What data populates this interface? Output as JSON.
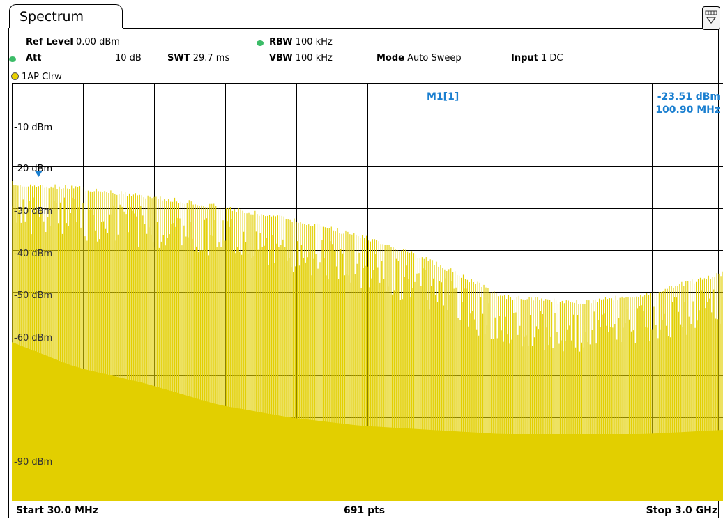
{
  "tab": {
    "title": "Spectrum"
  },
  "header": {
    "ref_level_label": "Ref Level",
    "ref_level_value": "0.00 dBm",
    "att_label": "Att",
    "att_value": "10 dB",
    "swt_label": "SWT",
    "swt_value": "29.7 ms",
    "rbw_label": "RBW",
    "rbw_value": "100 kHz",
    "vbw_label": "VBW",
    "vbw_value": "100 kHz",
    "mode_label": "Mode",
    "mode_value": "Auto Sweep",
    "input_label": "Input",
    "input_value": "1 DC"
  },
  "trace": {
    "label": "1AP Clrw",
    "color": "#e2cf00"
  },
  "marker": {
    "name": "M1[1]",
    "level": "-23.51 dBm",
    "freq": "100.90 MHz",
    "color": "#1a7fd0"
  },
  "yaxis": {
    "labels": [
      "-10 dBm",
      "-20 dBm",
      "-30 dBm",
      "-40 dBm",
      "-50 dBm",
      "-60 dBm",
      "-90 dBm"
    ]
  },
  "footer": {
    "start": "Start 30.0 MHz",
    "points": "691 pts",
    "stop": "Stop 3.0 GHz"
  },
  "chart_data": {
    "type": "line",
    "x_start_mhz": 30.0,
    "x_stop_mhz": 3000.0,
    "points": 691,
    "y_ref_dbm": 0,
    "y_range_dbm": [
      -100,
      0
    ],
    "grid": true,
    "envelope_peak_dbm": {
      "x_mhz": [
        30,
        297,
        594,
        891,
        1188,
        1485,
        1782,
        2079,
        2376,
        2673,
        3000
      ],
      "y_dbm": [
        -23.5,
        -24.5,
        -26.5,
        -29.0,
        -32.0,
        -36.0,
        -42.0,
        -50.5,
        -52.0,
        -50.0,
        -45.0
      ]
    },
    "envelope_floor_dbm": {
      "x_mhz": [
        30,
        297,
        594,
        891,
        1188,
        1485,
        1782,
        2079,
        2376,
        2673,
        3000
      ],
      "y_dbm": [
        -62,
        -68,
        -72,
        -77,
        -80,
        -82,
        -83,
        -84,
        -84,
        -84,
        -83
      ]
    }
  }
}
